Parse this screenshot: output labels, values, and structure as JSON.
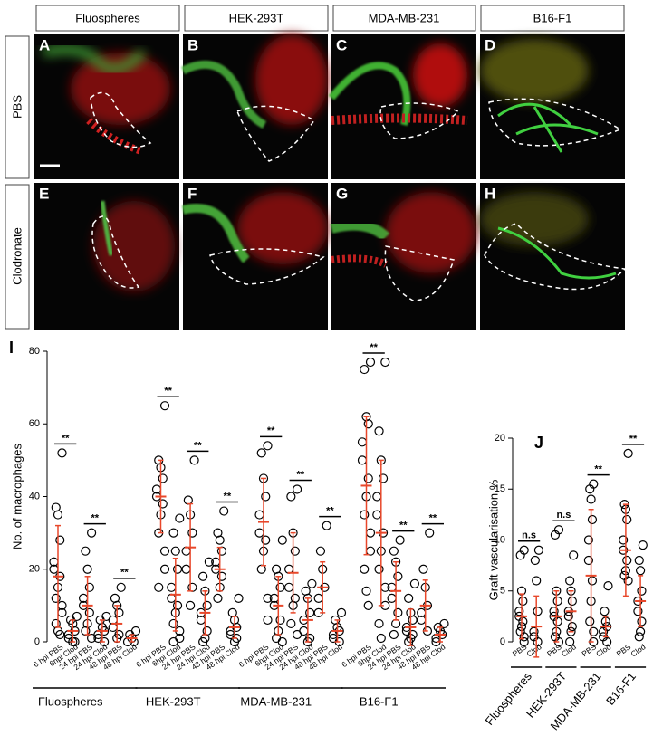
{
  "columns": [
    "Fluospheres",
    "HEK-293T",
    "MDA-MB-231",
    "B16-F1"
  ],
  "rows": [
    "PBS",
    "Clodronate"
  ],
  "panel_letters": [
    "A",
    "B",
    "C",
    "D",
    "E",
    "F",
    "G",
    "H"
  ],
  "chart_data": [
    {
      "type": "dot",
      "panel": "I",
      "ylabel": "No. of macrophages",
      "ylim": [
        0,
        80
      ],
      "yticks": [
        0,
        20,
        40,
        60,
        80
      ],
      "groups": [
        {
          "name": "Fluospheres",
          "categories": [
            "6 hpi PBS",
            "6hpi Clod",
            "24 hpi PBS",
            "24 hpi Clod",
            "48 hpi PBS",
            "48 hpi Clod"
          ],
          "points": [
            [
              52,
              37,
              35,
              28,
              22,
              20,
              18,
              15,
              12,
              10,
              8,
              5,
              3,
              2
            ],
            [
              7,
              6,
              5,
              3,
              2,
              1,
              0,
              0
            ],
            [
              30,
              25,
              20,
              15,
              12,
              10,
              8,
              5,
              3,
              1
            ],
            [
              7,
              6,
              4,
              3,
              2,
              1,
              0
            ],
            [
              15,
              12,
              10,
              8,
              6,
              4,
              2,
              1
            ],
            [
              3,
              2,
              1,
              0,
              0
            ]
          ],
          "mean": [
            18,
            3,
            10,
            3,
            5,
            1
          ],
          "sd": [
            14,
            3,
            8,
            3,
            5,
            1
          ],
          "significance": [
            "**",
            "**",
            "**"
          ]
        },
        {
          "name": "HEK-293T",
          "categories": [
            "6 hpi PBS",
            "6hpi Clod",
            "24 hpi PBS",
            "24 hpi Clod",
            "48 hpi PBS",
            "48 hpi Clod"
          ],
          "points": [
            [
              65,
              50,
              48,
              45,
              42,
              40,
              38,
              35,
              30,
              25,
              20,
              15
            ],
            [
              34,
              30,
              25,
              20,
              15,
              12,
              10,
              8,
              5,
              3,
              1,
              0
            ],
            [
              50,
              39,
              35,
              30,
              25,
              20,
              15,
              10
            ],
            [
              22,
              18,
              14,
              10,
              8,
              6,
              3,
              1,
              0
            ],
            [
              36,
              30,
              28,
              25,
              22,
              20,
              18,
              15,
              12
            ],
            [
              12,
              8,
              6,
              4,
              3,
              2,
              1,
              0
            ]
          ],
          "mean": [
            40,
            13,
            26,
            8,
            20,
            4
          ],
          "sd": [
            10,
            10,
            12,
            6,
            6,
            3
          ],
          "significance": [
            "**",
            "**",
            "**"
          ]
        },
        {
          "name": "MDA-MB-231",
          "categories": [
            "6 hpi PBS",
            "6hpi Clod",
            "24 hpi PBS",
            "24 hpi Clod",
            "48 hpi PBS",
            "48 hpi Clod"
          ],
          "points": [
            [
              54,
              52,
              45,
              40,
              35,
              30,
              28,
              25,
              20,
              12,
              6
            ],
            [
              28,
              20,
              18,
              15,
              12,
              10,
              6,
              3,
              1,
              0
            ],
            [
              42,
              40,
              30,
              25,
              20,
              15,
              12,
              10,
              5,
              2
            ],
            [
              16,
              14,
              12,
              8,
              6,
              3,
              1,
              0
            ],
            [
              32,
              25,
              20,
              15,
              12,
              8
            ],
            [
              8,
              6,
              4,
              3,
              2,
              1,
              0
            ]
          ],
          "mean": [
            33,
            10,
            19,
            6,
            15,
            3
          ],
          "sd": [
            12,
            8,
            11,
            6,
            7,
            3
          ],
          "significance": [
            "**",
            "**",
            "**"
          ]
        },
        {
          "name": "B16-F1",
          "categories": [
            "6 hpi PBS",
            "6hpi Clod",
            "24 hpi PBS",
            "24 hpi Clod",
            "48 hpi PBS",
            "48 hpi Clod"
          ],
          "points": [
            [
              77,
              75,
              62,
              60,
              55,
              50,
              45,
              40,
              35,
              30,
              25,
              20,
              14,
              10
            ],
            [
              77,
              58,
              50,
              45,
              40,
              35,
              30,
              25,
              20,
              15,
              10,
              5,
              1
            ],
            [
              28,
              25,
              22,
              18,
              15,
              12,
              8,
              5,
              2
            ],
            [
              16,
              12,
              8,
              6,
              4,
              3,
              2,
              1,
              0
            ],
            [
              30,
              20,
              15,
              10,
              8,
              6,
              3
            ],
            [
              5,
              4,
              3,
              2,
              1,
              0
            ]
          ],
          "mean": [
            43,
            30,
            14,
            4,
            10,
            2
          ],
          "sd": [
            19,
            20,
            8,
            5,
            7,
            2
          ],
          "significance": [
            "**",
            "**",
            "**"
          ]
        }
      ]
    },
    {
      "type": "dot",
      "panel": "J",
      "ylabel": "Graft vascularisation %",
      "ylim": [
        0,
        20
      ],
      "yticks": [
        0,
        5,
        10,
        15,
        20
      ],
      "groups": [
        {
          "name": "Fluospheres",
          "categories": [
            "PBS",
            "Clod"
          ],
          "points": [
            [
              9,
              8.5,
              5,
              4,
              3,
              2.5,
              2,
              1.5,
              1,
              0.5,
              0
            ],
            [
              9,
              8,
              6,
              3,
              1,
              0.5,
              0
            ]
          ],
          "mean": [
            2.5,
            1.5
          ],
          "sd": [
            2.2,
            3
          ],
          "significance": [
            "n.s"
          ]
        },
        {
          "name": "HEK-293T",
          "categories": [
            "PBS",
            "Clod"
          ],
          "points": [
            [
              11,
              10.5,
              5,
              4,
              3,
              2.5,
              2,
              1,
              0.5,
              0
            ],
            [
              8.5,
              6,
              5,
              4,
              3,
              2.5,
              1.5,
              1,
              0
            ]
          ],
          "mean": [
            2.5,
            3
          ],
          "sd": [
            2.5,
            2
          ],
          "significance": [
            "n.s"
          ]
        },
        {
          "name": "MDA-MB-231",
          "categories": [
            "PBS",
            "Clod"
          ],
          "points": [
            [
              15.5,
              15,
              14,
              12,
              10,
              8,
              6,
              4,
              2,
              1,
              0
            ],
            [
              5.5,
              3,
              2,
              1.5,
              1,
              0.5,
              0
            ]
          ],
          "mean": [
            6.5,
            1.5
          ],
          "sd": [
            6.5,
            1
          ],
          "significance": [
            "**"
          ]
        },
        {
          "name": "B16-F1",
          "categories": [
            "PBS",
            "Clod"
          ],
          "points": [
            [
              18.5,
              13.5,
              13,
              12,
              10,
              9,
              8,
              7,
              6.5,
              6
            ],
            [
              9.5,
              8,
              7,
              5,
              4,
              3,
              2,
              1,
              0.5
            ]
          ],
          "mean": [
            9,
            4
          ],
          "sd": [
            4.5,
            2.5
          ],
          "significance": [
            "**"
          ]
        }
      ]
    }
  ]
}
